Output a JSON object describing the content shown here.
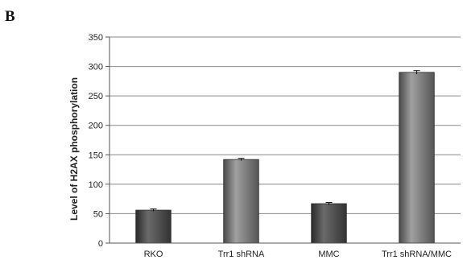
{
  "panel_label": "B",
  "chart_data": {
    "type": "bar",
    "categories": [
      "RKO",
      "Trr1 shRNA",
      "MMC",
      "Trr1 shRNA/MMC"
    ],
    "values": [
      56,
      142,
      67,
      290
    ],
    "errors": [
      2,
      2,
      2,
      3
    ],
    "bar_shading": [
      "dark",
      "light",
      "dark",
      "light"
    ],
    "title": "",
    "xlabel": "",
    "ylabel": "Level  of H2AX phosphorylation",
    "ylim": [
      0,
      350
    ],
    "yticks": [
      0,
      50,
      100,
      150,
      200,
      250,
      300,
      350
    ],
    "grid": true,
    "legend": "none",
    "colors": {
      "dark_top": "#6e6e6e",
      "dark_mid": "#3a3a3a",
      "light_top": "#9a9a9a",
      "light_mid": "#5c5c5c",
      "gridline": "#8a8a8a",
      "axis": "#555555"
    }
  }
}
